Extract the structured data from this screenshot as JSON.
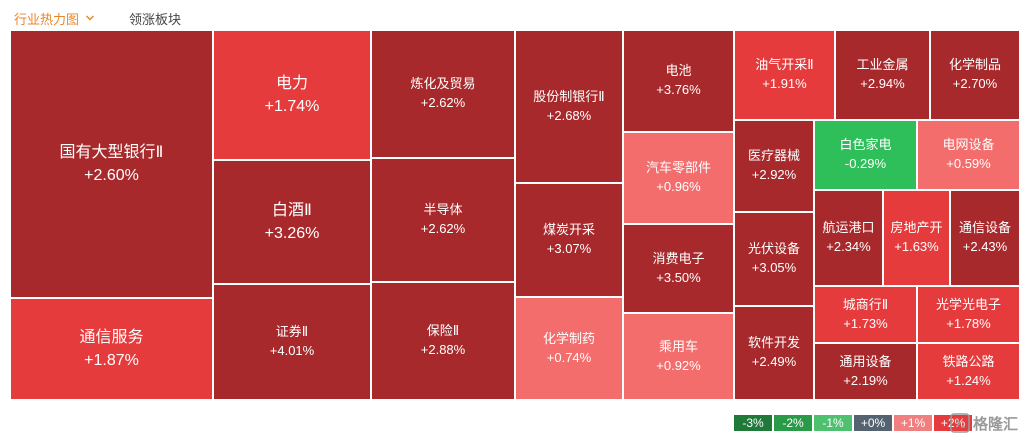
{
  "tabs": {
    "active": "行业热力图",
    "second": "领涨板块"
  },
  "colors": {
    "deep_red": "#a8292c",
    "red": "#e53b3d",
    "light_red": "#f36d6d",
    "green": "#2fbf5a"
  },
  "tiles": [
    {
      "id": "guoyou-bank",
      "name": "国有大型银行Ⅱ",
      "pct": "+2.60%"
    },
    {
      "id": "tongxin-fuwu",
      "name": "通信服务",
      "pct": "+1.87%"
    },
    {
      "id": "dianli",
      "name": "电力",
      "pct": "+1.74%"
    },
    {
      "id": "baijiu",
      "name": "白酒Ⅱ",
      "pct": "+3.26%"
    },
    {
      "id": "zhengquan",
      "name": "证券Ⅱ",
      "pct": "+4.01%"
    },
    {
      "id": "lianhua",
      "name": "炼化及贸易",
      "pct": "+2.62%"
    },
    {
      "id": "bandaoti",
      "name": "半导体",
      "pct": "+2.62%"
    },
    {
      "id": "baoxian",
      "name": "保险Ⅱ",
      "pct": "+2.88%"
    },
    {
      "id": "gufenzhi-bank",
      "name": "股份制银行Ⅱ",
      "pct": "+2.68%"
    },
    {
      "id": "meitan",
      "name": "煤炭开采",
      "pct": "+3.07%"
    },
    {
      "id": "huaxue-zhiyao",
      "name": "化学制药",
      "pct": "+0.74%"
    },
    {
      "id": "dianchi",
      "name": "电池",
      "pct": "+3.76%"
    },
    {
      "id": "qiche-lingbujian",
      "name": "汽车零部件",
      "pct": "+0.96%"
    },
    {
      "id": "xiaofei-dianzi",
      "name": "消费电子",
      "pct": "+3.50%"
    },
    {
      "id": "chengyongche",
      "name": "乘用车",
      "pct": "+0.92%"
    },
    {
      "id": "youqi",
      "name": "油气开采Ⅱ",
      "pct": "+1.91%"
    },
    {
      "id": "gongye-jinshu",
      "name": "工业金属",
      "pct": "+2.94%"
    },
    {
      "id": "huaxue-zhipin",
      "name": "化学制品",
      "pct": "+2.70%"
    },
    {
      "id": "yiliao-qixie",
      "name": "医疗器械",
      "pct": "+2.92%"
    },
    {
      "id": "baise-jiadian",
      "name": "白色家电",
      "pct": "-0.29%"
    },
    {
      "id": "dianwang",
      "name": "电网设备",
      "pct": "+0.59%"
    },
    {
      "id": "guangfu",
      "name": "光伏设备",
      "pct": "+3.05%"
    },
    {
      "id": "hangyun",
      "name": "航运港口",
      "pct": "+2.34%"
    },
    {
      "id": "fangdichan",
      "name": "房地产开",
      "pct": "+1.63%"
    },
    {
      "id": "tongxin-shebei",
      "name": "通信设备",
      "pct": "+2.43%"
    },
    {
      "id": "chengshang-bank",
      "name": "城商行Ⅱ",
      "pct": "+1.73%"
    },
    {
      "id": "guangxue",
      "name": "光学光电子",
      "pct": "+1.78%"
    },
    {
      "id": "ruanjian",
      "name": "软件开发",
      "pct": "+2.49%"
    },
    {
      "id": "tongyong-shebei",
      "name": "通用设备",
      "pct": "+2.19%"
    },
    {
      "id": "tielu",
      "name": "铁路公路",
      "pct": "+1.24%"
    }
  ],
  "legend": [
    {
      "label": "-3%",
      "color": "#1f7a3a"
    },
    {
      "label": "-2%",
      "color": "#2a9a48"
    },
    {
      "label": "-1%",
      "color": "#4fc070"
    },
    {
      "label": "+0%",
      "color": "#556270"
    },
    {
      "label": "+1%",
      "color": "#f08080"
    },
    {
      "label": "+2%",
      "color": "#e53b3d"
    }
  ],
  "watermark": "格隆汇"
}
